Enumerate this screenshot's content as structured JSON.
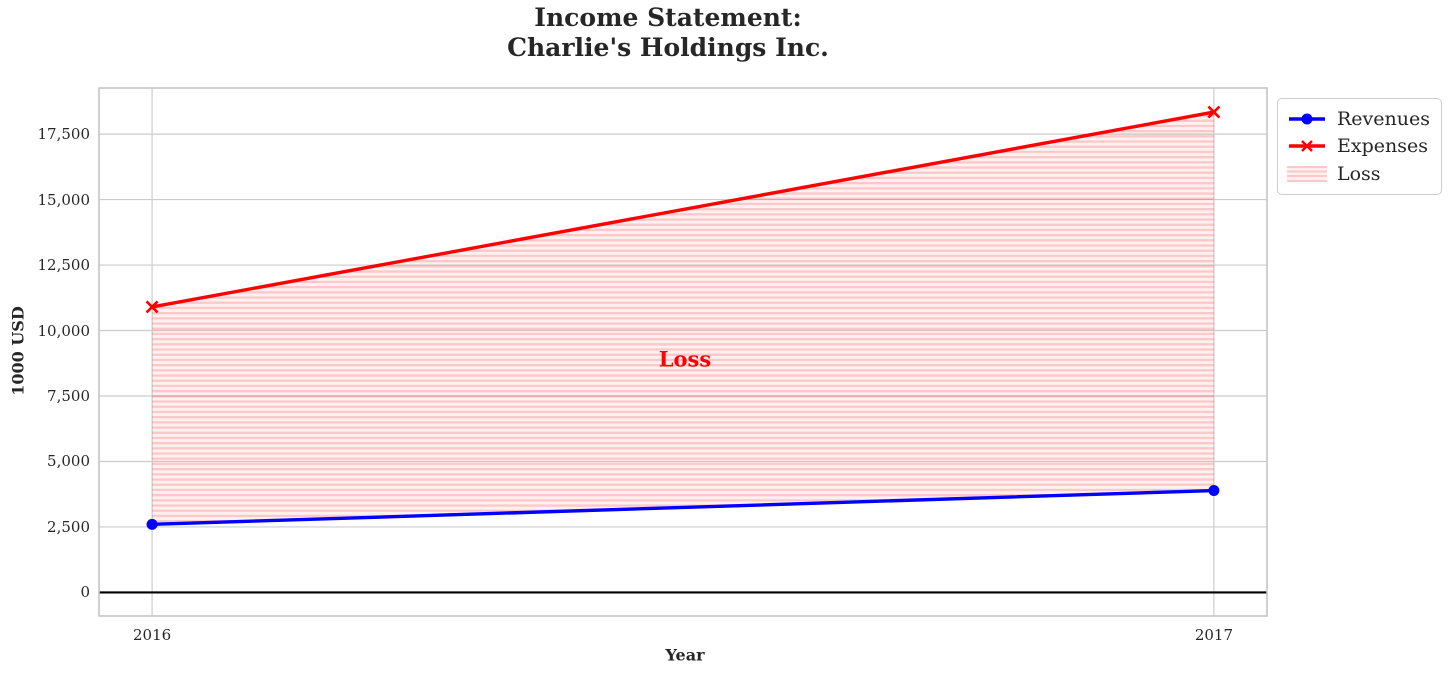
{
  "chart": {
    "title_line1": "Income Statement:",
    "title_line2": "Charlie's Holdings Inc.",
    "xlabel": "Year",
    "ylabel": "1000 USD",
    "annotation": "Loss"
  },
  "chart_data": {
    "type": "line",
    "title": "Income Statement:\nCharlie's Holdings Inc.",
    "xlabel": "Year",
    "ylabel": "1000 USD",
    "x": [
      2016,
      2017
    ],
    "x_ticks": [
      "2016",
      "2017"
    ],
    "series": [
      {
        "name": "Revenues",
        "values": [
          2600,
          3890
        ],
        "color": "#0000ff",
        "marker": "circle"
      },
      {
        "name": "Expenses",
        "values": [
          10900,
          18340
        ],
        "color": "#ff0000",
        "marker": "x"
      }
    ],
    "fill_between": {
      "name": "Loss",
      "between": [
        "Revenues",
        "Expenses"
      ],
      "color": "#ff0000",
      "style": "horizontal-hatch"
    },
    "annotation": {
      "text": "Loss",
      "x": 2016.5,
      "y": 8900,
      "color": "#ff0000"
    },
    "y_ticks": [
      "0",
      "2,500",
      "5,000",
      "7,500",
      "10,000",
      "12,500",
      "15,000",
      "17,500"
    ],
    "y_tick_values": [
      0,
      2500,
      5000,
      7500,
      10000,
      12500,
      15000,
      17500
    ],
    "xlim": [
      2015.95,
      2017.05
    ],
    "ylim": [
      -900,
      19260
    ],
    "grid": true,
    "grid_color": "#cccccc",
    "zero_line": true,
    "zero_line_color": "#000000",
    "legend_position": "upper-right-outside"
  }
}
